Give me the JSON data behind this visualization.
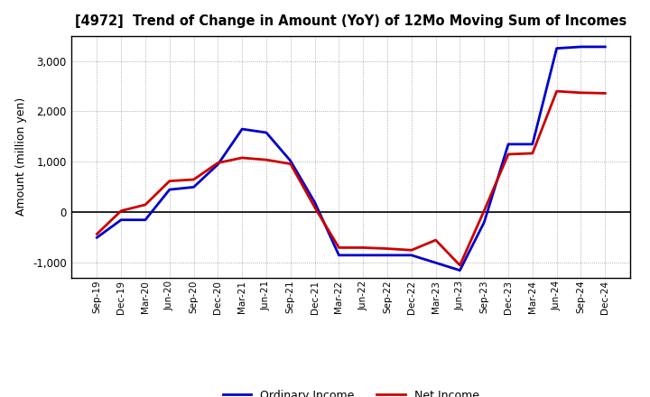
{
  "title": "[4972]  Trend of Change in Amount (YoY) of 12Mo Moving Sum of Incomes",
  "ylabel": "Amount (million yen)",
  "background_color": "#ffffff",
  "grid_color": "#999999",
  "x_labels": [
    "Sep-19",
    "Dec-19",
    "Mar-20",
    "Jun-20",
    "Sep-20",
    "Dec-20",
    "Mar-21",
    "Jun-21",
    "Sep-21",
    "Dec-21",
    "Mar-22",
    "Jun-22",
    "Sep-22",
    "Dec-22",
    "Mar-23",
    "Jun-23",
    "Sep-23",
    "Dec-23",
    "Mar-24",
    "Jun-24",
    "Sep-24",
    "Dec-24"
  ],
  "ordinary_income": [
    -500,
    -150,
    -150,
    450,
    500,
    950,
    1650,
    1580,
    1020,
    200,
    -850,
    -850,
    -850,
    -850,
    -1000,
    -1150,
    -200,
    1350,
    1350,
    3250,
    3280,
    3280
  ],
  "net_income": [
    -430,
    30,
    150,
    620,
    650,
    980,
    1080,
    1040,
    960,
    100,
    -700,
    -700,
    -720,
    -750,
    -550,
    -1050,
    30,
    1150,
    1170,
    2400,
    2370,
    2360
  ],
  "ordinary_color": "#0000cc",
  "net_color": "#cc0000",
  "ylim": [
    -1300,
    3500
  ],
  "yticks": [
    -1000,
    0,
    1000,
    2000,
    3000
  ],
  "line_width": 2.0,
  "legend_labels": [
    "Ordinary Income",
    "Net Income"
  ]
}
